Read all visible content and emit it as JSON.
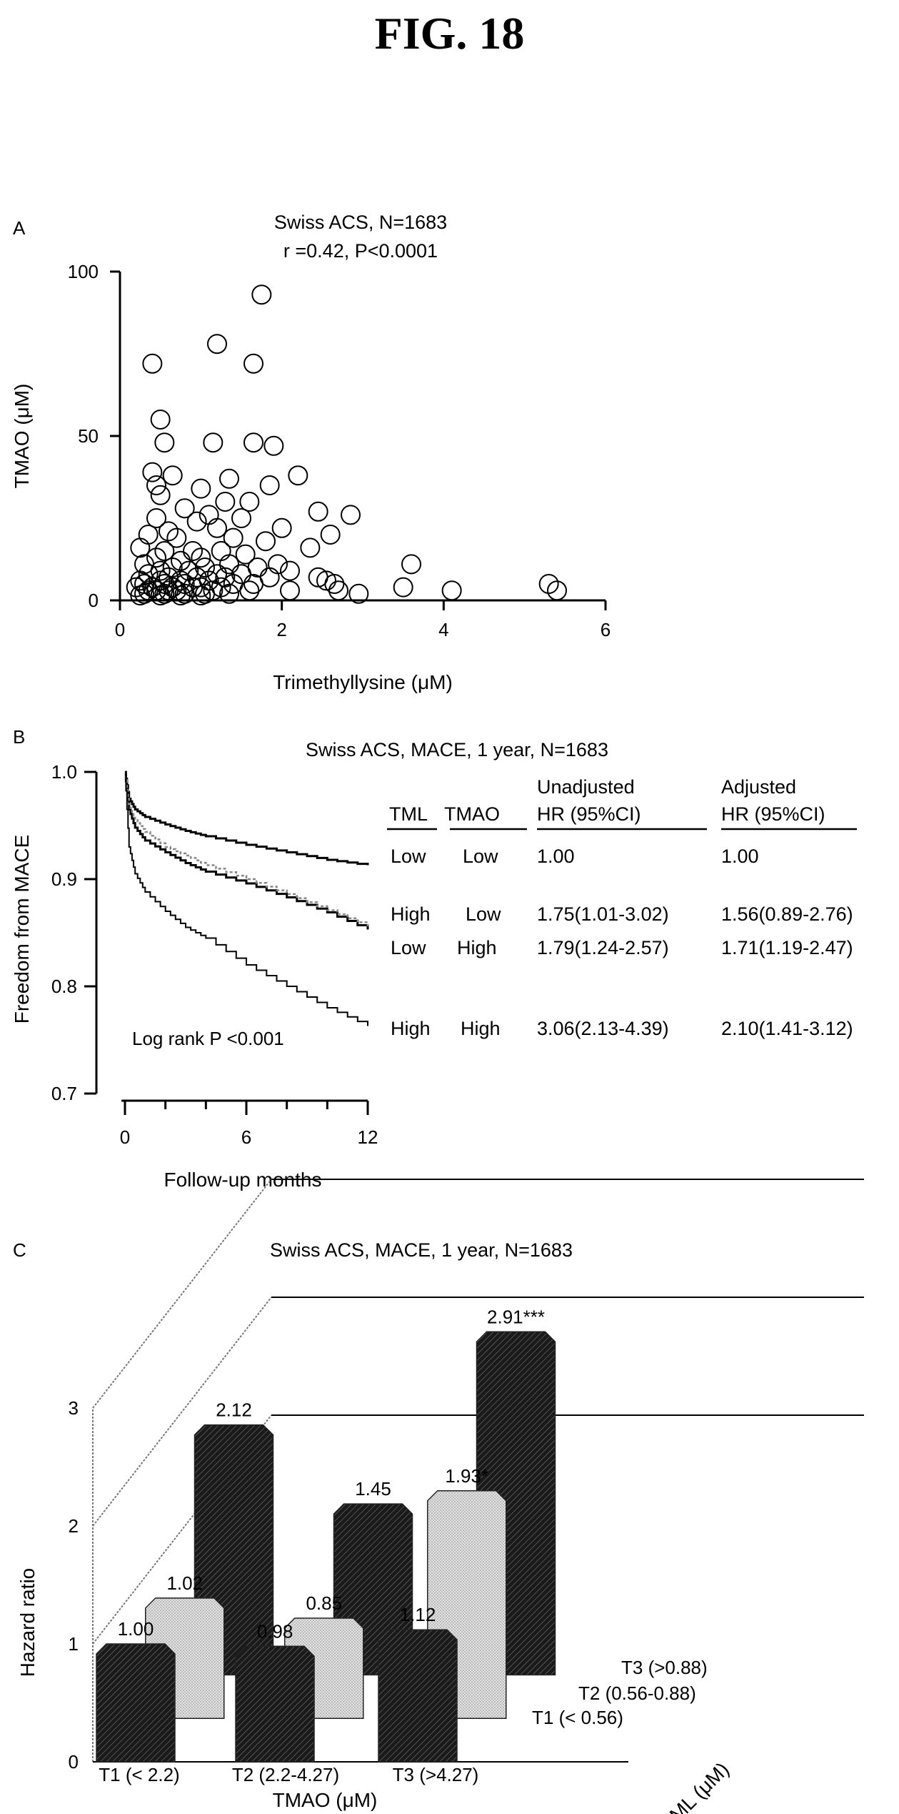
{
  "figure_title": "FIG. 18",
  "chart_data": [
    {
      "panel": "A",
      "type": "scatter",
      "title": "Swiss ACS, N=1683",
      "subtitle": "r =0.42, P<0.0001",
      "xlabel": "Trimethyllysine (μM)",
      "ylabel": "TMAO (μM)",
      "xlim": [
        0,
        6
      ],
      "ylim": [
        0,
        100
      ],
      "xticks": [
        "0",
        "2",
        "4",
        "6"
      ],
      "yticks": [
        "0",
        "50",
        "100"
      ],
      "points": [
        [
          1.75,
          93
        ],
        [
          1.2,
          78
        ],
        [
          0.4,
          72
        ],
        [
          1.65,
          72
        ],
        [
          0.5,
          55
        ],
        [
          0.55,
          48
        ],
        [
          1.15,
          48
        ],
        [
          1.65,
          48
        ],
        [
          1.9,
          47
        ],
        [
          0.4,
          39
        ],
        [
          0.65,
          38
        ],
        [
          1.35,
          37
        ],
        [
          0.45,
          35
        ],
        [
          2.2,
          38
        ],
        [
          1.85,
          35
        ],
        [
          0.5,
          32
        ],
        [
          1.0,
          34
        ],
        [
          1.3,
          30
        ],
        [
          1.6,
          30
        ],
        [
          0.8,
          28
        ],
        [
          2.45,
          27
        ],
        [
          2.85,
          26
        ],
        [
          0.45,
          25
        ],
        [
          1.1,
          26
        ],
        [
          1.5,
          25
        ],
        [
          0.95,
          24
        ],
        [
          2.0,
          22
        ],
        [
          1.2,
          22
        ],
        [
          0.6,
          21
        ],
        [
          0.35,
          20
        ],
        [
          2.6,
          20
        ],
        [
          0.7,
          19
        ],
        [
          1.4,
          19
        ],
        [
          1.8,
          18
        ],
        [
          2.35,
          16
        ],
        [
          0.25,
          16
        ],
        [
          0.55,
          15
        ],
        [
          0.9,
          15
        ],
        [
          1.25,
          15
        ],
        [
          1.55,
          14
        ],
        [
          1.0,
          13
        ],
        [
          0.45,
          13
        ],
        [
          0.75,
          12
        ],
        [
          1.95,
          11
        ],
        [
          1.35,
          11
        ],
        [
          0.3,
          11
        ],
        [
          0.65,
          10
        ],
        [
          1.05,
          10
        ],
        [
          1.7,
          10
        ],
        [
          2.1,
          9
        ],
        [
          0.5,
          9
        ],
        [
          0.85,
          9
        ],
        [
          1.2,
          8
        ],
        [
          1.5,
          8
        ],
        [
          0.35,
          8
        ],
        [
          0.6,
          7
        ],
        [
          0.95,
          7
        ],
        [
          1.3,
          7
        ],
        [
          1.85,
          7
        ],
        [
          2.45,
          7
        ],
        [
          2.55,
          6
        ],
        [
          2.65,
          5
        ],
        [
          0.25,
          6
        ],
        [
          0.5,
          6
        ],
        [
          0.75,
          6
        ],
        [
          1.1,
          6
        ],
        [
          1.4,
          5
        ],
        [
          1.65,
          5
        ],
        [
          0.3,
          5
        ],
        [
          0.55,
          5
        ],
        [
          0.8,
          5
        ],
        [
          1.0,
          4
        ],
        [
          1.25,
          4
        ],
        [
          0.4,
          4
        ],
        [
          0.65,
          4
        ],
        [
          0.9,
          4
        ],
        [
          1.15,
          3
        ],
        [
          0.2,
          4
        ],
        [
          0.45,
          3
        ],
        [
          0.7,
          3
        ],
        [
          2.7,
          3
        ],
        [
          2.95,
          2
        ],
        [
          3.5,
          4
        ],
        [
          3.6,
          11
        ],
        [
          4.1,
          3
        ],
        [
          5.3,
          5
        ],
        [
          5.4,
          3
        ],
        [
          0.3,
          2
        ],
        [
          0.55,
          2
        ],
        [
          0.8,
          2
        ],
        [
          1.05,
          2
        ],
        [
          1.35,
          2
        ],
        [
          0.25,
          1.5
        ],
        [
          0.5,
          1.5
        ],
        [
          0.75,
          1.5
        ],
        [
          1.0,
          1.5
        ],
        [
          1.6,
          3
        ],
        [
          2.1,
          3
        ],
        [
          0.35,
          3
        ],
        [
          0.6,
          3
        ]
      ]
    },
    {
      "panel": "B",
      "type": "line",
      "title": "Swiss ACS, MACE, 1 year, N=1683",
      "xlabel": "Follow-up months",
      "ylabel": "Freedom from MACE",
      "xlim": [
        0,
        12
      ],
      "ylim": [
        0.7,
        1.0
      ],
      "xticks": [
        "0",
        "6",
        "12"
      ],
      "yticks": [
        "0.7",
        "0.8",
        "0.9",
        "1.0"
      ],
      "annotation": "Log rank P <0.001",
      "series": [
        {
          "x": [
            0,
            0.2,
            0.5,
            1,
            2,
            3,
            4,
            6,
            8,
            10,
            12
          ],
          "values": [
            1.0,
            0.975,
            0.965,
            0.958,
            0.951,
            0.945,
            0.94,
            0.932,
            0.925,
            0.918,
            0.913
          ]
        },
        {
          "x": [
            0,
            0.2,
            0.5,
            1,
            2,
            3,
            4,
            6,
            8,
            10,
            12
          ],
          "values": [
            1.0,
            0.965,
            0.948,
            0.936,
            0.925,
            0.915,
            0.907,
            0.896,
            0.883,
            0.869,
            0.853
          ]
        },
        {
          "x": [
            0,
            0.2,
            0.5,
            1,
            2,
            3,
            4,
            6,
            8,
            10,
            12
          ],
          "values": [
            1.0,
            0.97,
            0.955,
            0.944,
            0.93,
            0.922,
            0.913,
            0.9,
            0.886,
            0.871,
            0.856
          ]
        },
        {
          "x": [
            0,
            0.2,
            0.5,
            1,
            2,
            3,
            4,
            6,
            8,
            10,
            12
          ],
          "values": [
            1.0,
            0.93,
            0.905,
            0.888,
            0.87,
            0.855,
            0.845,
            0.82,
            0.8,
            0.78,
            0.763
          ]
        }
      ],
      "table": {
        "headers": [
          "TML",
          "TMAO",
          "Unadjusted",
          "HR (95%CI)",
          "Adjusted",
          "HR (95%CI)"
        ],
        "rows": [
          [
            "Low",
            "Low",
            "1.00",
            "1.00"
          ],
          [
            "High",
            "Low",
            "1.75(1.01-3.02)",
            "1.56(0.89-2.76)"
          ],
          [
            "Low",
            "High",
            "1.79(1.24-2.57)",
            "1.71(1.19-2.47)"
          ],
          [
            "High",
            "High",
            "3.06(2.13-4.39)",
            "2.10(1.41-3.12)"
          ]
        ]
      }
    },
    {
      "panel": "C",
      "type": "bar",
      "title": "Swiss ACS, MACE, 1 year, N=1683",
      "ylabel": "Hazard ratio",
      "yticks": [
        "0",
        "1",
        "2",
        "3"
      ],
      "ylim": [
        0,
        3
      ],
      "xlabel": "TMAO (μM)",
      "depth_label": "TML (μM)",
      "categories": [
        "T1 (< 2.2)",
        "T2 (2.2-4.27)",
        "T3 (>4.27)"
      ],
      "depth_categories": [
        "T1 (< 0.56)",
        "T2 (0.56-0.88)",
        "T3 (>0.88)"
      ],
      "series": [
        {
          "name": "T1 (< 0.56)",
          "values": [
            1.0,
            0.98,
            1.12
          ],
          "labels": [
            "1.00",
            "0.98",
            "1.12"
          ]
        },
        {
          "name": "T2 (0.56-0.88)",
          "values": [
            1.02,
            0.85,
            1.93
          ],
          "labels": [
            "1.02",
            "0.85",
            "1.93*"
          ]
        },
        {
          "name": "T3 (>0.88)",
          "values": [
            2.12,
            1.45,
            2.91
          ],
          "labels": [
            "2.12",
            "1.45",
            "2.91***"
          ]
        }
      ]
    }
  ]
}
